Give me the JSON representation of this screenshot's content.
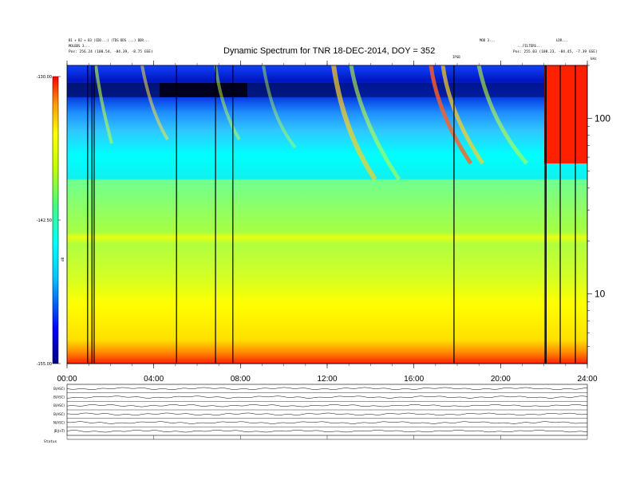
{
  "header": {
    "title": "Dynamic Spectrum for TNR 18-DEC-2014, DOY = 352",
    "left_line1": "B1 + B2 + B3 (CDD...) (TDS DDS ...) DDR...",
    "left_line2": "MOLBDS 3...",
    "left_pos": "Pos: 256.24 (108.54, -84.39, -8.75 GSE)",
    "right_line1": "MOD 3...",
    "right_line2": "LDR...",
    "right_line3": "...FILTERS...",
    "right_pos": "Pos: 255.03 (108.23, -84.45, -7.39 GSE)",
    "marker": "IPSB"
  },
  "colorbar": {
    "ticks": [
      {
        "value": -130,
        "label": "-130.00"
      },
      {
        "value": -142.5,
        "label": "-142.50"
      },
      {
        "value": -155,
        "label": "-155.00"
      }
    ],
    "units": "dB"
  },
  "yaxis_right": {
    "ticks": [
      {
        "value": 100,
        "label": "100"
      },
      {
        "value": 10,
        "label": "10"
      }
    ],
    "top_label": "kHz"
  },
  "xaxis": {
    "ticks": [
      {
        "hour": 0,
        "label": "00:00"
      },
      {
        "hour": 4,
        "label": "04:00"
      },
      {
        "hour": 8,
        "label": "08:00"
      },
      {
        "hour": 12,
        "label": "12:00"
      },
      {
        "hour": 16,
        "label": "16:00"
      },
      {
        "hour": 20,
        "label": "20:00"
      },
      {
        "hour": 24,
        "label": "24:00"
      }
    ]
  },
  "panels": [
    {
      "label": "B(ASC)"
    },
    {
      "label": "B(ASC)"
    },
    {
      "label": "B(ASC)"
    },
    {
      "label": "B(ASC)"
    },
    {
      "label": "N(ASC)"
    },
    {
      "label": "|B|(nT)"
    }
  ],
  "status_label": "Status",
  "chart_data": {
    "type": "heatmap",
    "title": "Dynamic Spectrum for TNR 18-DEC-2014, DOY = 352",
    "x_range_hours": [
      0,
      24
    ],
    "y_scale": "log",
    "y_range_khz": [
      4,
      200
    ],
    "color_range_db": [
      -155,
      -130
    ],
    "data_gaps_hours": [
      0.95,
      1.15,
      1.25,
      5.05,
      6.85,
      7.65,
      17.85,
      22.05,
      22.1,
      22.75,
      23.45
    ]
  }
}
